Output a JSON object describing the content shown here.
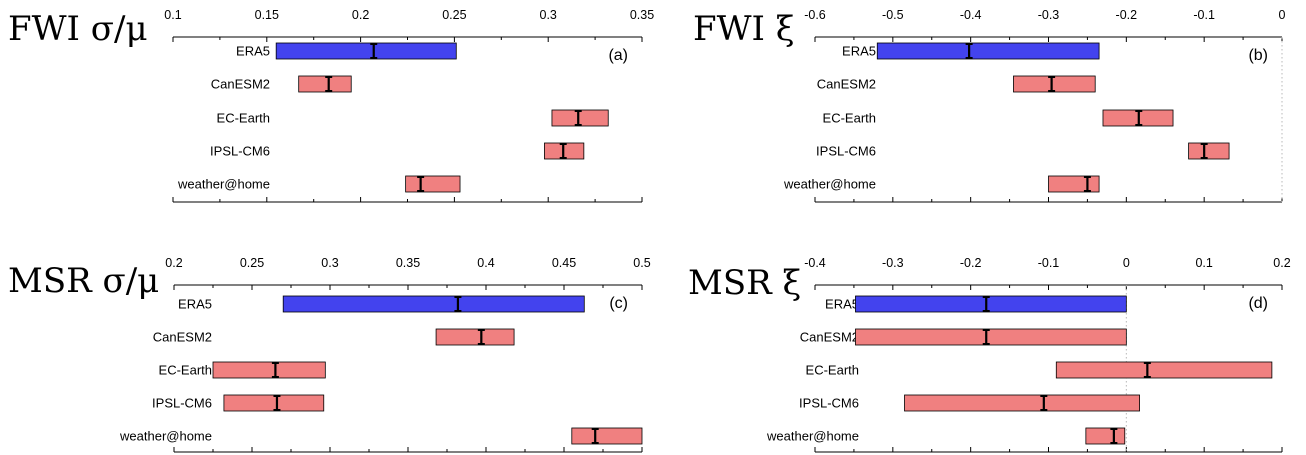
{
  "colors": {
    "ERA5": "#4343ee",
    "model": "#f08080",
    "axis": "#000000"
  },
  "chart_data": [
    {
      "type": "bar",
      "orientation": "horizontal-range",
      "title": "FWI σ/μ",
      "tag": "(a)",
      "xlim": [
        0.1,
        0.35
      ],
      "xticks": [
        "0.1",
        "0.15",
        "0.2",
        "0.25",
        "0.3",
        "0.35"
      ],
      "zero_line": false,
      "categories": [
        "ERA5",
        "CanESM2",
        "EC-Earth",
        "IPSL-CM6",
        "weather@home"
      ],
      "ranges": [
        [
          0.155,
          0.251
        ],
        [
          0.167,
          0.195
        ],
        [
          0.302,
          0.332
        ],
        [
          0.298,
          0.319
        ],
        [
          0.224,
          0.253
        ]
      ],
      "best_estimates": [
        0.207,
        0.183,
        0.316,
        0.308,
        0.232
      ]
    },
    {
      "type": "bar",
      "orientation": "horizontal-range",
      "title": "FWI ξ",
      "tag": "(b)",
      "xlim": [
        -0.6,
        0
      ],
      "xticks": [
        "-0.6",
        "-0.5",
        "-0.4",
        "-0.3",
        "-0.2",
        "-0.1",
        "0"
      ],
      "zero_line": true,
      "categories": [
        "ERA5",
        "CanESM2",
        "EC-Earth",
        "IPSL-CM6",
        "weather@home"
      ],
      "ranges": [
        [
          -0.52,
          -0.235
        ],
        [
          -0.345,
          -0.24
        ],
        [
          -0.23,
          -0.14
        ],
        [
          -0.12,
          -0.068
        ],
        [
          -0.3,
          -0.235
        ]
      ],
      "best_estimates": [
        -0.402,
        -0.296,
        -0.184,
        -0.1,
        -0.25
      ]
    },
    {
      "type": "bar",
      "orientation": "horizontal-range",
      "title": "MSR σ/μ",
      "tag": "(c)",
      "xlim": [
        0.2,
        0.5
      ],
      "xticks": [
        "0.2",
        "0.25",
        "0.3",
        "0.35",
        "0.4",
        "0.45",
        "0.5"
      ],
      "zero_line": false,
      "categories": [
        "ERA5",
        "CanESM2",
        "EC-Earth",
        "IPSL-CM6",
        "weather@home"
      ],
      "ranges": [
        [
          0.27,
          0.463
        ],
        [
          0.368,
          0.418
        ],
        [
          0.225,
          0.297
        ],
        [
          0.232,
          0.296
        ],
        [
          0.455,
          0.5
        ]
      ],
      "best_estimates": [
        0.382,
        0.397,
        0.265,
        0.266,
        0.47
      ]
    },
    {
      "type": "bar",
      "orientation": "horizontal-range",
      "title": "MSR ξ",
      "tag": "(d)",
      "xlim": [
        -0.4,
        0.2
      ],
      "xticks": [
        "-0.4",
        "-0.3",
        "-0.2",
        "-0.1",
        "0",
        "0.1",
        "0.2"
      ],
      "zero_line": true,
      "categories": [
        "ERA5",
        "CanESM2",
        "EC-Earth",
        "IPSL-CM6",
        "weather@home"
      ],
      "ranges": [
        [
          -0.348,
          0.0
        ],
        [
          -0.348,
          0.0
        ],
        [
          -0.09,
          0.187
        ],
        [
          -0.285,
          0.017
        ],
        [
          -0.052,
          -0.002
        ]
      ],
      "best_estimates": [
        -0.18,
        -0.18,
        0.027,
        -0.106,
        -0.016
      ]
    }
  ]
}
